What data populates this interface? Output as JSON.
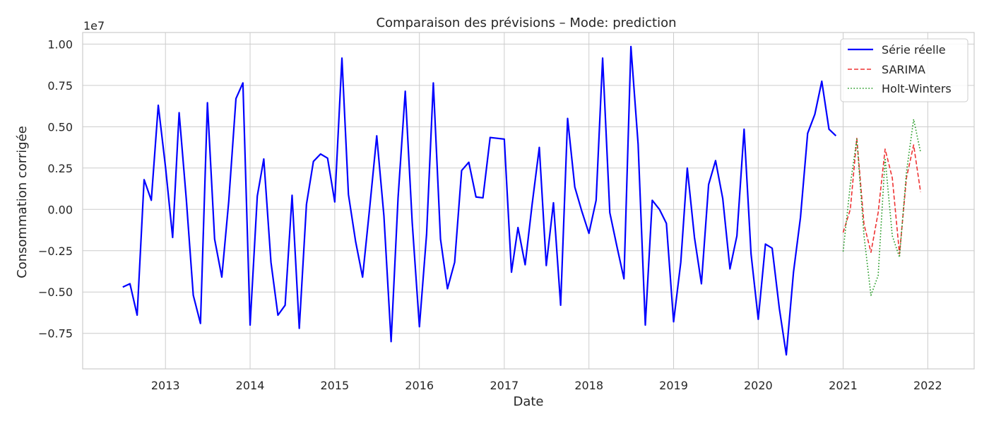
{
  "chart_data": {
    "type": "line",
    "title": "Comparaison des prévisions – Mode: prediction",
    "xlabel": "Date",
    "ylabel": "Consommation corrigée",
    "y_offset_label": "1e7",
    "xlim": [
      "2012-01-10",
      "2022-07-20"
    ],
    "ylim": [
      -9650000,
      10700000
    ],
    "x_ticks": [
      "2013-01-01",
      "2014-01-01",
      "2015-01-01",
      "2016-01-01",
      "2017-01-01",
      "2018-01-01",
      "2019-01-01",
      "2020-01-01",
      "2021-01-01",
      "2022-01-01"
    ],
    "x_tick_labels": [
      "2013",
      "2014",
      "2015",
      "2016",
      "2017",
      "2018",
      "2019",
      "2020",
      "2021",
      "2022"
    ],
    "y_ticks": [
      -7500000,
      -5000000,
      -2500000,
      0,
      2500000,
      5000000,
      7500000,
      10000000
    ],
    "y_tick_labels": [
      "−0.75",
      "−0.50",
      "−0.25",
      "0.00",
      "0.25",
      "0.50",
      "0.75",
      "1.00"
    ],
    "grid": true,
    "legend_position": "top-right",
    "series": [
      {
        "name": "Série réelle",
        "color": "#0000ff",
        "style": "solid",
        "points": [
          [
            "2012-07-01",
            -4700000
          ],
          [
            "2012-08-01",
            -4500000
          ],
          [
            "2012-09-01",
            -6400000
          ],
          [
            "2012-10-01",
            1800000
          ],
          [
            "2012-11-01",
            550000
          ],
          [
            "2012-12-01",
            6300000
          ],
          [
            "2013-01-01",
            2600000
          ],
          [
            "2013-02-01",
            -1700000
          ],
          [
            "2013-03-01",
            5850000
          ],
          [
            "2013-04-01",
            600000
          ],
          [
            "2013-05-01",
            -5200000
          ],
          [
            "2013-06-01",
            -6900000
          ],
          [
            "2013-07-01",
            6450000
          ],
          [
            "2013-08-01",
            -1800000
          ],
          [
            "2013-09-01",
            -4100000
          ],
          [
            "2013-10-01",
            500000
          ],
          [
            "2013-11-01",
            6700000
          ],
          [
            "2013-12-01",
            7650000
          ],
          [
            "2014-01-01",
            -7000000
          ],
          [
            "2014-02-01",
            800000
          ],
          [
            "2014-03-01",
            3050000
          ],
          [
            "2014-04-01",
            -3200000
          ],
          [
            "2014-05-01",
            -6400000
          ],
          [
            "2014-06-01",
            -5800000
          ],
          [
            "2014-07-01",
            850000
          ],
          [
            "2014-08-01",
            -7200000
          ],
          [
            "2014-09-01",
            300000
          ],
          [
            "2014-10-01",
            2900000
          ],
          [
            "2014-11-01",
            3350000
          ],
          [
            "2014-12-01",
            3100000
          ],
          [
            "2015-01-01",
            450000
          ],
          [
            "2015-02-01",
            9150000
          ],
          [
            "2015-03-01",
            900000
          ],
          [
            "2015-04-01",
            -1950000
          ],
          [
            "2015-05-01",
            -4100000
          ],
          [
            "2015-06-01",
            150000
          ],
          [
            "2015-07-01",
            4450000
          ],
          [
            "2015-08-01",
            -400000
          ],
          [
            "2015-09-01",
            -8000000
          ],
          [
            "2015-10-01",
            700000
          ],
          [
            "2015-11-01",
            7150000
          ],
          [
            "2015-12-01",
            -800000
          ],
          [
            "2016-01-01",
            -7100000
          ],
          [
            "2016-02-01",
            -1500000
          ],
          [
            "2016-03-01",
            7650000
          ],
          [
            "2016-04-01",
            -1800000
          ],
          [
            "2016-05-01",
            -4800000
          ],
          [
            "2016-06-01",
            -3200000
          ],
          [
            "2016-07-01",
            2350000
          ],
          [
            "2016-08-01",
            2850000
          ],
          [
            "2016-09-01",
            750000
          ],
          [
            "2016-10-01",
            700000
          ],
          [
            "2016-11-01",
            4350000
          ],
          [
            "2016-12-01",
            4300000
          ],
          [
            "2017-01-01",
            4250000
          ],
          [
            "2017-02-01",
            -3800000
          ],
          [
            "2017-03-01",
            -1100000
          ],
          [
            "2017-04-01",
            -3350000
          ],
          [
            "2017-05-01",
            300000
          ],
          [
            "2017-06-01",
            3750000
          ],
          [
            "2017-07-01",
            -3400000
          ],
          [
            "2017-08-01",
            400000
          ],
          [
            "2017-09-01",
            -5800000
          ],
          [
            "2017-10-01",
            5500000
          ],
          [
            "2017-11-01",
            1350000
          ],
          [
            "2017-12-01",
            -100000
          ],
          [
            "2018-01-01",
            -1450000
          ],
          [
            "2018-02-01",
            550000
          ],
          [
            "2018-03-01",
            9150000
          ],
          [
            "2018-04-01",
            -200000
          ],
          [
            "2018-05-01",
            -2200000
          ],
          [
            "2018-06-01",
            -4200000
          ],
          [
            "2018-07-01",
            9850000
          ],
          [
            "2018-08-01",
            3950000
          ],
          [
            "2018-09-01",
            -7000000
          ],
          [
            "2018-10-01",
            550000
          ],
          [
            "2018-11-01",
            0
          ],
          [
            "2018-12-01",
            -850000
          ],
          [
            "2019-01-01",
            -6800000
          ],
          [
            "2019-02-01",
            -3200000
          ],
          [
            "2019-03-01",
            2500000
          ],
          [
            "2019-04-01",
            -1700000
          ],
          [
            "2019-05-01",
            -4500000
          ],
          [
            "2019-06-01",
            1500000
          ],
          [
            "2019-07-01",
            2950000
          ],
          [
            "2019-08-01",
            650000
          ],
          [
            "2019-09-01",
            -3600000
          ],
          [
            "2019-10-01",
            -1600000
          ],
          [
            "2019-11-01",
            4850000
          ],
          [
            "2019-12-01",
            -2700000
          ],
          [
            "2020-01-01",
            -6650000
          ],
          [
            "2020-02-01",
            -2100000
          ],
          [
            "2020-03-01",
            -2350000
          ],
          [
            "2020-04-01",
            -6000000
          ],
          [
            "2020-05-01",
            -8800000
          ],
          [
            "2020-06-01",
            -3800000
          ],
          [
            "2020-07-01",
            -500000
          ],
          [
            "2020-08-01",
            4600000
          ],
          [
            "2020-09-01",
            5750000
          ],
          [
            "2020-10-01",
            7750000
          ],
          [
            "2020-11-01",
            4850000
          ],
          [
            "2020-12-01",
            4450000
          ]
        ]
      },
      {
        "name": "SARIMA",
        "color": "#ee3333",
        "style": "dashed",
        "points": [
          [
            "2021-01-01",
            -1400000
          ],
          [
            "2021-02-01",
            0
          ],
          [
            "2021-03-01",
            4300000
          ],
          [
            "2021-04-01",
            -900000
          ],
          [
            "2021-05-01",
            -2600000
          ],
          [
            "2021-06-01",
            -200000
          ],
          [
            "2021-07-01",
            3650000
          ],
          [
            "2021-08-01",
            1900000
          ],
          [
            "2021-09-01",
            -2700000
          ],
          [
            "2021-10-01",
            1900000
          ],
          [
            "2021-11-01",
            3900000
          ],
          [
            "2021-12-01",
            1050000
          ]
        ]
      },
      {
        "name": "Holt-Winters",
        "color": "#229922",
        "style": "dotted",
        "points": [
          [
            "2021-01-01",
            -2550000
          ],
          [
            "2021-02-01",
            1500000
          ],
          [
            "2021-03-01",
            4250000
          ],
          [
            "2021-04-01",
            -1600000
          ],
          [
            "2021-05-01",
            -5200000
          ],
          [
            "2021-06-01",
            -4000000
          ],
          [
            "2021-07-01",
            3100000
          ],
          [
            "2021-08-01",
            -1600000
          ],
          [
            "2021-09-01",
            -2900000
          ],
          [
            "2021-10-01",
            2250000
          ],
          [
            "2021-11-01",
            5450000
          ],
          [
            "2021-12-01",
            3450000
          ]
        ]
      }
    ]
  }
}
